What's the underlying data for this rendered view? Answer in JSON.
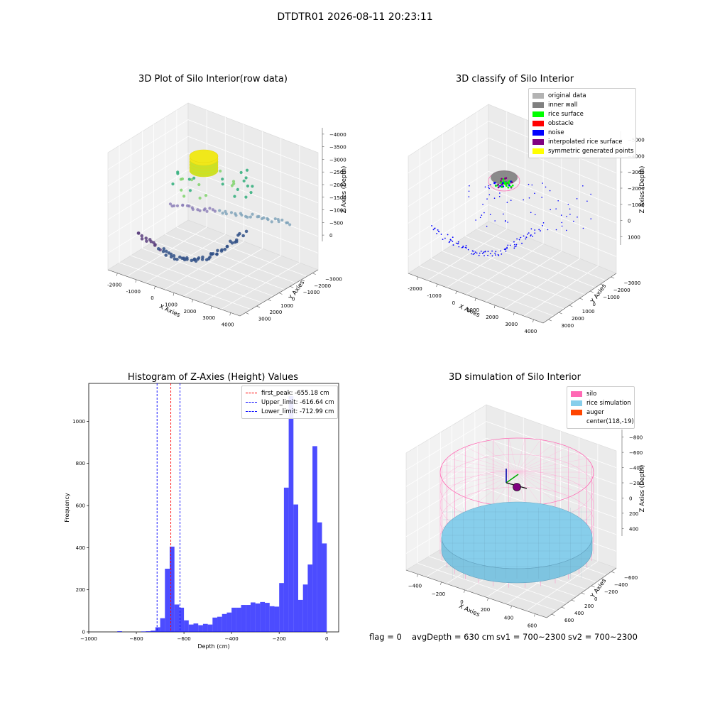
{
  "suptitle": "DTDTR01 2026-08-11 20:23:11",
  "chart_data": [
    {
      "type": "scatter",
      "title": "3D Plot of Silo Interior(row data)",
      "xlabel": "X Axies",
      "ylabel": "Y Axies",
      "zlabel": "Z Axies (Depth)",
      "x_ticks": [
        "-2000",
        "-1000",
        "0",
        "1000",
        "2000",
        "3000",
        "4000"
      ],
      "y_ticks": [
        "3000",
        "2000",
        "1000",
        "0",
        "−1000",
        "−2000",
        "−3000"
      ],
      "z_ticks": [
        "0",
        "−500",
        "−1000",
        "−1500",
        "−2000",
        "−2500",
        "−3000",
        "−3500",
        "−4000"
      ]
    },
    {
      "type": "scatter",
      "title": "3D classify of Silo Interior",
      "xlabel": "X Axies",
      "ylabel": "Y Axies",
      "zlabel": "Z Axies (Depth)",
      "x_ticks": [
        "-2000",
        "-1000",
        "0",
        "1000",
        "2000",
        "3000",
        "4000"
      ],
      "y_ticks": [
        "3000",
        "2000",
        "1000",
        "0",
        "−1000",
        "−2000",
        "−3000"
      ],
      "z_ticks": [
        "1000",
        "0",
        "−1000",
        "−2000",
        "−3000",
        "−4000",
        "−5000"
      ],
      "legend": [
        {
          "label": "original data",
          "color": "#b3b3b3"
        },
        {
          "label": "inner wall",
          "color": "#808080"
        },
        {
          "label": "rice surface",
          "color": "#00ff00"
        },
        {
          "label": "obstacle",
          "color": "#ff0000"
        },
        {
          "label": "noise",
          "color": "#0000ff"
        },
        {
          "label": "interpolated rice surface",
          "color": "#800080"
        },
        {
          "label": "symmetric generated points",
          "color": "#ffff00"
        }
      ]
    },
    {
      "type": "bar",
      "title": "Histogram of Z-Axies (Height) Values",
      "xlabel": "Depth (cm)",
      "ylabel": "Frequency",
      "xlim": [
        -1000,
        50
      ],
      "ylim": [
        0,
        1180
      ],
      "x_ticks": [
        -1000,
        -800,
        -600,
        -400,
        -200,
        0
      ],
      "y_ticks": [
        0,
        200,
        400,
        600,
        800,
        1000
      ],
      "bar_color": "#0000ff",
      "bin_width": 20,
      "bins": [
        {
          "x": -880,
          "count": 3
        },
        {
          "x": -780,
          "count": 2
        },
        {
          "x": -760,
          "count": 3
        },
        {
          "x": -740,
          "count": 6
        },
        {
          "x": -720,
          "count": 22
        },
        {
          "x": -700,
          "count": 65
        },
        {
          "x": -680,
          "count": 300
        },
        {
          "x": -660,
          "count": 405
        },
        {
          "x": -640,
          "count": 130
        },
        {
          "x": -620,
          "count": 115
        },
        {
          "x": -600,
          "count": 55
        },
        {
          "x": -580,
          "count": 35
        },
        {
          "x": -560,
          "count": 40
        },
        {
          "x": -540,
          "count": 32
        },
        {
          "x": -520,
          "count": 38
        },
        {
          "x": -500,
          "count": 35
        },
        {
          "x": -480,
          "count": 68
        },
        {
          "x": -460,
          "count": 72
        },
        {
          "x": -440,
          "count": 85
        },
        {
          "x": -420,
          "count": 92
        },
        {
          "x": -400,
          "count": 115
        },
        {
          "x": -380,
          "count": 115
        },
        {
          "x": -360,
          "count": 128
        },
        {
          "x": -340,
          "count": 128
        },
        {
          "x": -320,
          "count": 140
        },
        {
          "x": -300,
          "count": 135
        },
        {
          "x": -280,
          "count": 142
        },
        {
          "x": -260,
          "count": 138
        },
        {
          "x": -240,
          "count": 122
        },
        {
          "x": -220,
          "count": 120
        },
        {
          "x": -200,
          "count": 232
        },
        {
          "x": -180,
          "count": 685
        },
        {
          "x": -160,
          "count": 1120
        },
        {
          "x": -140,
          "count": 605
        },
        {
          "x": -120,
          "count": 152
        },
        {
          "x": -100,
          "count": 225
        },
        {
          "x": -80,
          "count": 320
        },
        {
          "x": -60,
          "count": 882
        },
        {
          "x": -40,
          "count": 520
        },
        {
          "x": -20,
          "count": 420
        }
      ],
      "vlines": [
        {
          "label": "first_peak: -655.18 cm",
          "x": -655.18,
          "color": "#ff0000"
        },
        {
          "label": "Upper_limit: -616.64 cm",
          "x": -616.64,
          "color": "#0000ff"
        },
        {
          "label": "Lower_limit: -712.99 cm",
          "x": -712.99,
          "color": "#0000ff"
        }
      ]
    },
    {
      "type": "surface",
      "title": "3D simulation of Silo Interior",
      "xlabel": "X Axies",
      "ylabel": "Y Axies",
      "zlabel": "Z Axies (Depth)",
      "x_ticks": [
        "−400",
        "−200",
        "0",
        "200",
        "400",
        "600"
      ],
      "y_ticks": [
        "600",
        "400",
        "200",
        "0",
        "−200",
        "−400",
        "−600"
      ],
      "z_ticks": [
        "400",
        "200",
        "0",
        "−200",
        "−400",
        "−600",
        "−800"
      ],
      "legend": [
        {
          "label": "silo",
          "color": "#ff69b4"
        },
        {
          "label": "rice simulation",
          "color": "#87ceeb"
        },
        {
          "label": "auger",
          "color": "#ff4500"
        },
        {
          "label": "center(118,-19)",
          "color": ""
        }
      ]
    }
  ],
  "footer": {
    "flag": "flag = 0",
    "avg": "avgDepth = 630 cm",
    "sv1": "sv1 = 700~2300",
    "sv2": "sv2 = 700~2300"
  }
}
